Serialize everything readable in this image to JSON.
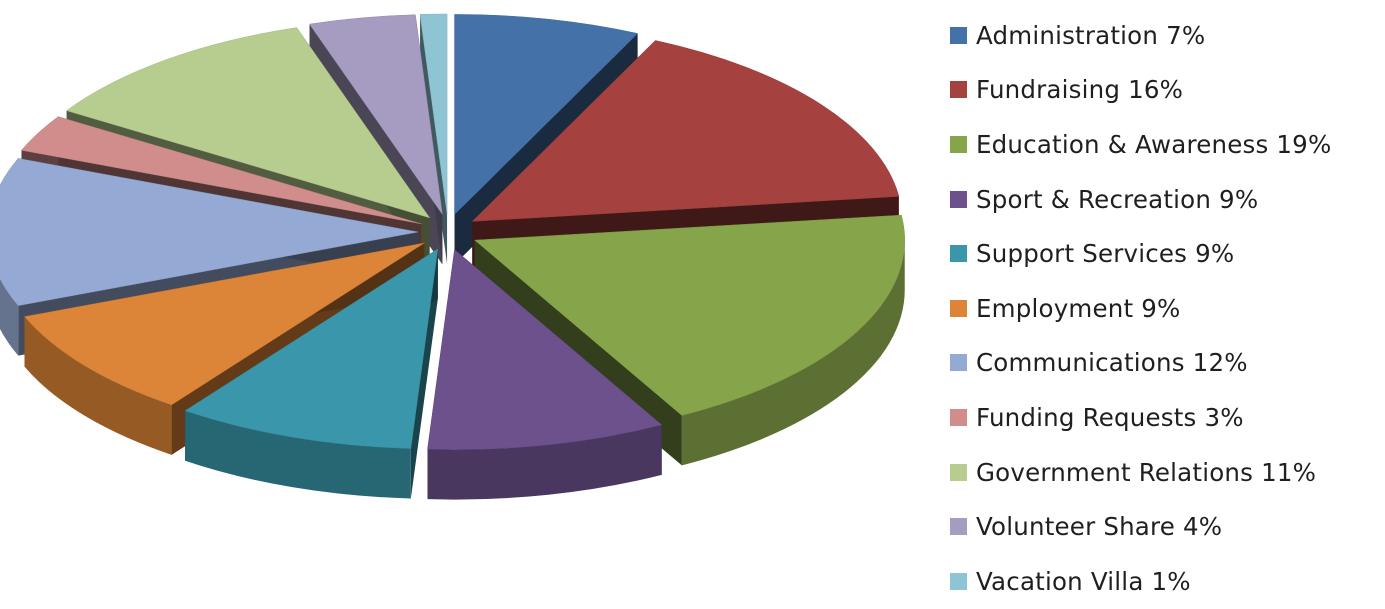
{
  "chart_data": {
    "type": "pie",
    "style": "3d-exploded",
    "legend_position": "right",
    "slices": [
      {
        "label": "Administration 7%",
        "name": "Administration",
        "value": 7,
        "color": "#4472A8"
      },
      {
        "label": "Fundraising 16%",
        "name": "Fundraising",
        "value": 16,
        "color": "#A5413F"
      },
      {
        "label": "Education & Awareness 19%",
        "name": "Education & Awareness",
        "value": 19,
        "color": "#86A54A"
      },
      {
        "label": "Sport & Recreation 9%",
        "name": "Sport & Recreation",
        "value": 9,
        "color": "#6D518D"
      },
      {
        "label": "Support Services 9%",
        "name": "Support Services",
        "value": 9,
        "color": "#3A97AB"
      },
      {
        "label": "Employment 9%",
        "name": "Employment",
        "value": 9,
        "color": "#DC8437"
      },
      {
        "label": "Communications 12%",
        "name": "Communications",
        "value": 12,
        "color": "#94A9D3"
      },
      {
        "label": "Funding Requests 3%",
        "name": "Funding Requests",
        "value": 3,
        "color": "#D08D8C"
      },
      {
        "label": "Government Relations 11%",
        "name": "Government Relations",
        "value": 11,
        "color": "#B7CC8F"
      },
      {
        "label": "Volunteer Share 4%",
        "name": "Volunteer Share",
        "value": 4,
        "color": "#A69BC0"
      },
      {
        "label": "Vacation Villa 1%",
        "name": "Vacation Villa",
        "value": 1,
        "color": "#8FC4D4"
      }
    ]
  }
}
